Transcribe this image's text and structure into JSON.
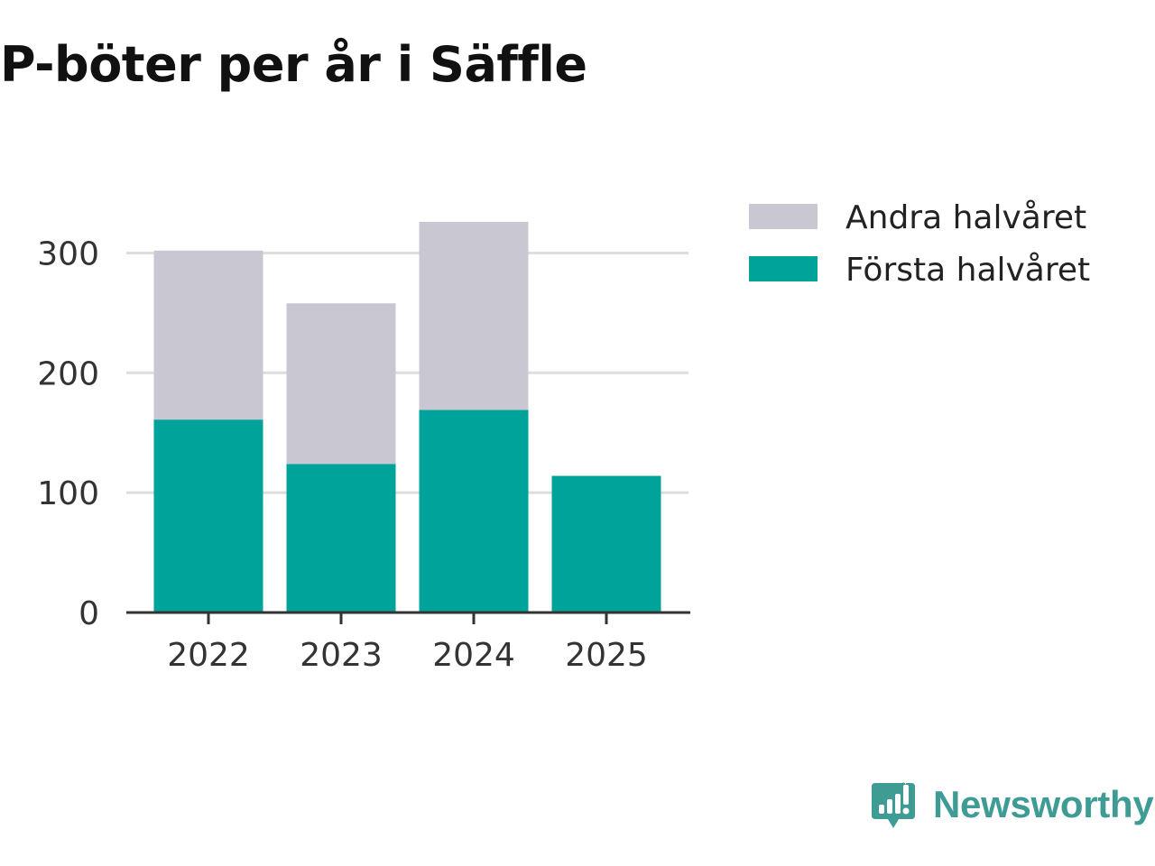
{
  "chart_data": {
    "type": "bar",
    "stacked": true,
    "title": "P-böter per år i Säffle",
    "xlabel": "",
    "ylabel": "",
    "categories": [
      "2022",
      "2023",
      "2024",
      "2025"
    ],
    "series": [
      {
        "name": "Första halvåret",
        "color": "#00a39a",
        "values": [
          161,
          124,
          169,
          114
        ]
      },
      {
        "name": "Andra halvåret",
        "color": "#c8c7d2",
        "values": [
          141,
          134,
          157,
          0
        ]
      }
    ],
    "ylim": [
      0,
      330
    ],
    "yticks": [
      "0",
      "100",
      "200",
      "300"
    ],
    "ytick_values": [
      0,
      100,
      200,
      300
    ],
    "grid": true,
    "legend_position": "right",
    "legend_order": [
      "Andra halvåret",
      "Första halvåret"
    ]
  },
  "brand": {
    "name": "Newsworthy",
    "color": "#3f9c95"
  }
}
